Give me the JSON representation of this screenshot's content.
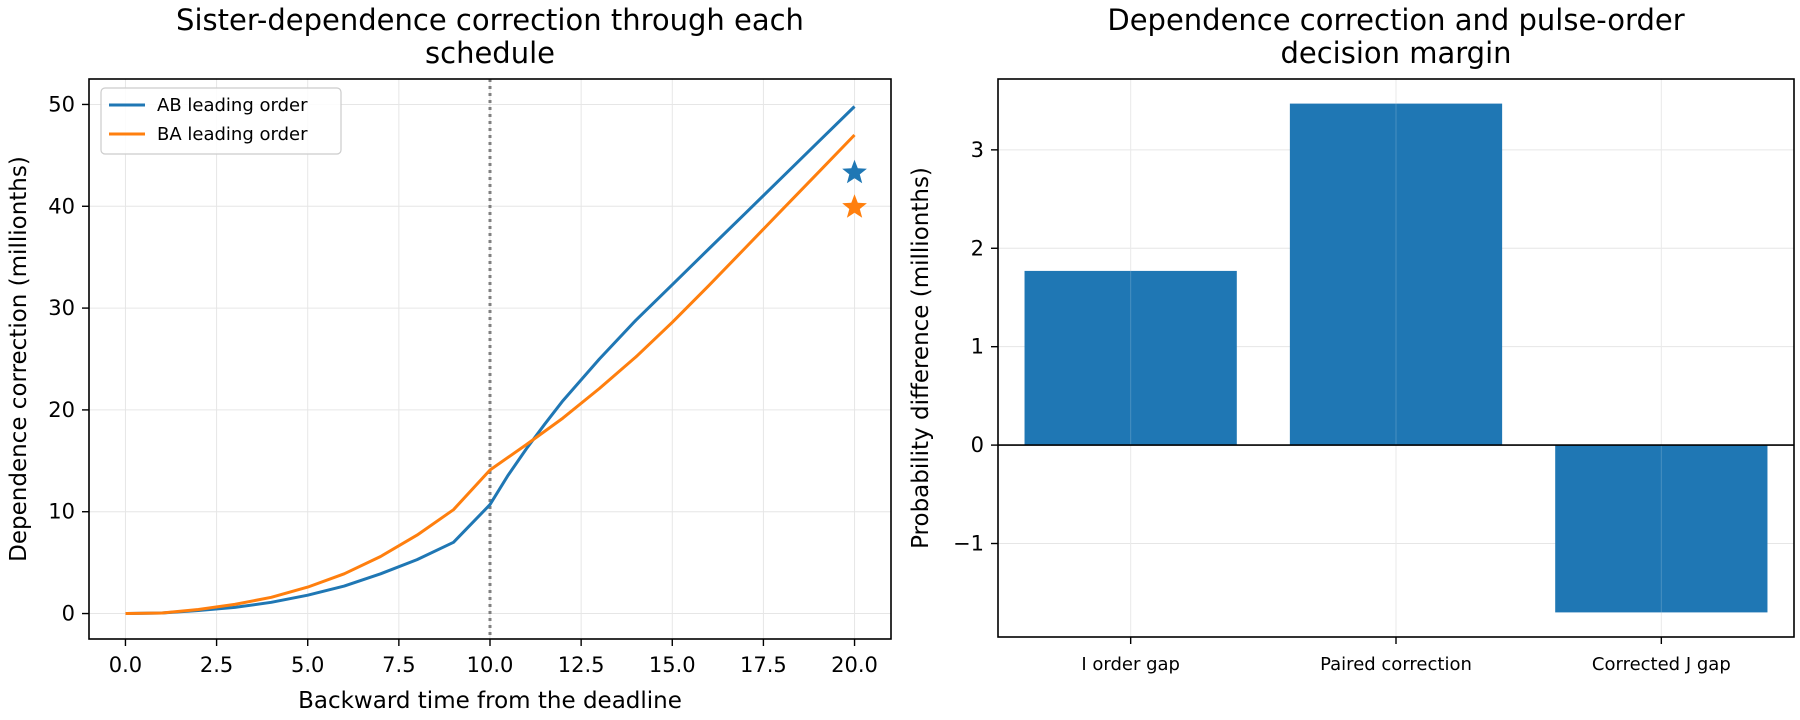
{
  "chart_data": [
    {
      "type": "line",
      "title": "Sister-dependence correction through each\nschedule",
      "xlabel": "Backward time from the deadline",
      "ylabel": "Dependence correction (millionths)",
      "xlim": [
        -1.0,
        21.0
      ],
      "ylim": [
        -2.5,
        52.5
      ],
      "xticks": [
        "0.0",
        "2.5",
        "5.0",
        "7.5",
        "10.0",
        "12.5",
        "15.0",
        "17.5",
        "20.0"
      ],
      "yticks": [
        "0",
        "10",
        "20",
        "30",
        "40",
        "50"
      ],
      "grid": true,
      "legend": "top-left",
      "vline": 10.0,
      "series": [
        {
          "name": "AB leading order",
          "color": "#1f77b4",
          "x": [
            0,
            1,
            2,
            3,
            4,
            5,
            6,
            7,
            8,
            9,
            10,
            10.5,
            11,
            11.5,
            12,
            13,
            14,
            15,
            16,
            17,
            18,
            19,
            20
          ],
          "y": [
            0,
            0.05,
            0.3,
            0.6,
            1.1,
            1.8,
            2.7,
            3.9,
            5.3,
            7.0,
            10.7,
            13.6,
            16.2,
            18.6,
            20.9,
            25.0,
            28.8,
            32.3,
            35.8,
            39.3,
            42.8,
            46.3,
            49.8
          ],
          "marker_x": 20,
          "marker_y": 43.3
        },
        {
          "name": "BA leading order",
          "color": "#ff7f0e",
          "x": [
            0,
            1,
            2,
            3,
            4,
            5,
            6,
            7,
            8,
            9,
            10,
            11,
            12,
            13,
            14,
            15,
            16,
            17,
            18,
            19,
            20
          ],
          "y": [
            0,
            0.05,
            0.4,
            0.9,
            1.6,
            2.6,
            3.9,
            5.6,
            7.7,
            10.2,
            14.1,
            16.6,
            19.2,
            22.1,
            25.2,
            28.6,
            32.2,
            35.9,
            39.6,
            43.3,
            47.0
          ],
          "marker_x": 20,
          "marker_y": 39.9
        }
      ]
    },
    {
      "type": "bar",
      "title": "Dependence correction and pulse-order\ndecision margin",
      "xlabel": "",
      "ylabel": "Probability difference (millionths)",
      "categories": [
        "I order gap",
        "Paired correction",
        "Corrected J gap"
      ],
      "values": [
        1.77,
        3.47,
        -1.7
      ],
      "color": "#1f77b4",
      "ylim": [
        -1.95,
        3.72
      ],
      "yticks": [
        "−1",
        "0",
        "1",
        "2",
        "3"
      ],
      "grid": true
    }
  ]
}
